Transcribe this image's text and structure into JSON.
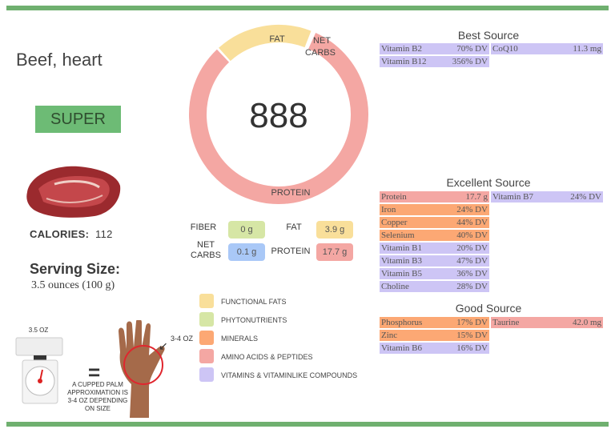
{
  "food": {
    "name": "Beef, heart",
    "rating": "SUPER",
    "calories_label": "CALORIES:",
    "calories": "112",
    "serving_label": "Serving Size:",
    "serving_value": "3.5 ounces (100 g)"
  },
  "colors": {
    "accent_green": "#6fb06f",
    "functional_fats": "#f9df9a",
    "phytonutrients": "#d6e6a5",
    "minerals": "#fca874",
    "amino_acids": "#f4a7a3",
    "vitamins": "#cdc5f5",
    "carbs": "#a9c8f7"
  },
  "donut": {
    "center_value": "888",
    "segments": [
      {
        "label": "FAT",
        "value": 3.9,
        "color": "#f9df9a"
      },
      {
        "label": "NET CARBS",
        "value": 0.1,
        "color": "#ffffff"
      },
      {
        "label": "PROTEIN",
        "value": 17.7,
        "color": "#f4a7a3"
      }
    ],
    "fat_label": "FAT",
    "carbs_label_1": "NET",
    "carbs_label_2": "CARBS",
    "protein_label": "PROTEIN"
  },
  "macros": {
    "fiber_label": "FIBER",
    "fiber": "0 g",
    "net_label_1": "NET",
    "net_label_2": "CARBS",
    "net_carbs": "0.1 g",
    "fat_label": "FAT",
    "fat": "3.9 g",
    "protein_label": "PROTEIN",
    "protein": "17.7 g"
  },
  "legend": [
    {
      "label": "FUNCTIONAL FATS",
      "color": "#f9df9a"
    },
    {
      "label": "PHYTONUTRIENTS",
      "color": "#d6e6a5"
    },
    {
      "label": "MINERALS",
      "color": "#fca874"
    },
    {
      "label": "AMINO ACIDS & PEPTIDES",
      "color": "#f4a7a3"
    },
    {
      "label": "VITAMINS & VITAMINLIKE COMPOUNDS",
      "color": "#cdc5f5"
    }
  ],
  "best": {
    "title": "Best Source",
    "col1": [
      {
        "name": "Vitamin B2",
        "value": "70% DV",
        "type": "vitamins"
      },
      {
        "name": "Vitamin B12",
        "value": "356% DV",
        "type": "vitamins"
      }
    ],
    "col2": [
      {
        "name": "CoQ10",
        "value": "11.3 mg",
        "type": "vitamins"
      }
    ]
  },
  "excellent": {
    "title": "Excellent Source",
    "col1": [
      {
        "name": "Protein",
        "value": "17.7 g",
        "type": "amino_acids"
      },
      {
        "name": "Iron",
        "value": "24% DV",
        "type": "minerals"
      },
      {
        "name": "Copper",
        "value": "44% DV",
        "type": "minerals"
      },
      {
        "name": "Selenium",
        "value": "40% DV",
        "type": "minerals"
      },
      {
        "name": "Vitamin B1",
        "value": "20% DV",
        "type": "vitamins"
      },
      {
        "name": "Vitamin B3",
        "value": "47% DV",
        "type": "vitamins"
      },
      {
        "name": "Vitamin B5",
        "value": "36% DV",
        "type": "vitamins"
      },
      {
        "name": "Choline",
        "value": "28% DV",
        "type": "vitamins"
      }
    ],
    "col2": [
      {
        "name": "Vitamin B7",
        "value": "24% DV",
        "type": "vitamins"
      }
    ]
  },
  "good": {
    "title": "Good Source",
    "col1": [
      {
        "name": "Phosphorus",
        "value": "17% DV",
        "type": "minerals"
      },
      {
        "name": "Zinc",
        "value": "15% DV",
        "type": "minerals"
      },
      {
        "name": "Vitamin B6",
        "value": "16% DV",
        "type": "vitamins"
      }
    ],
    "col2": [
      {
        "name": "Taurine",
        "value": "42.0 mg",
        "type": "amino_acids"
      }
    ]
  },
  "portion": {
    "scale_label": "3.5 OZ",
    "equals": "=",
    "palm_label": "3-4 OZ",
    "note": "A CUPPED PALM APPROXIMATION IS 3-4 OZ DEPENDING ON SIZE"
  }
}
